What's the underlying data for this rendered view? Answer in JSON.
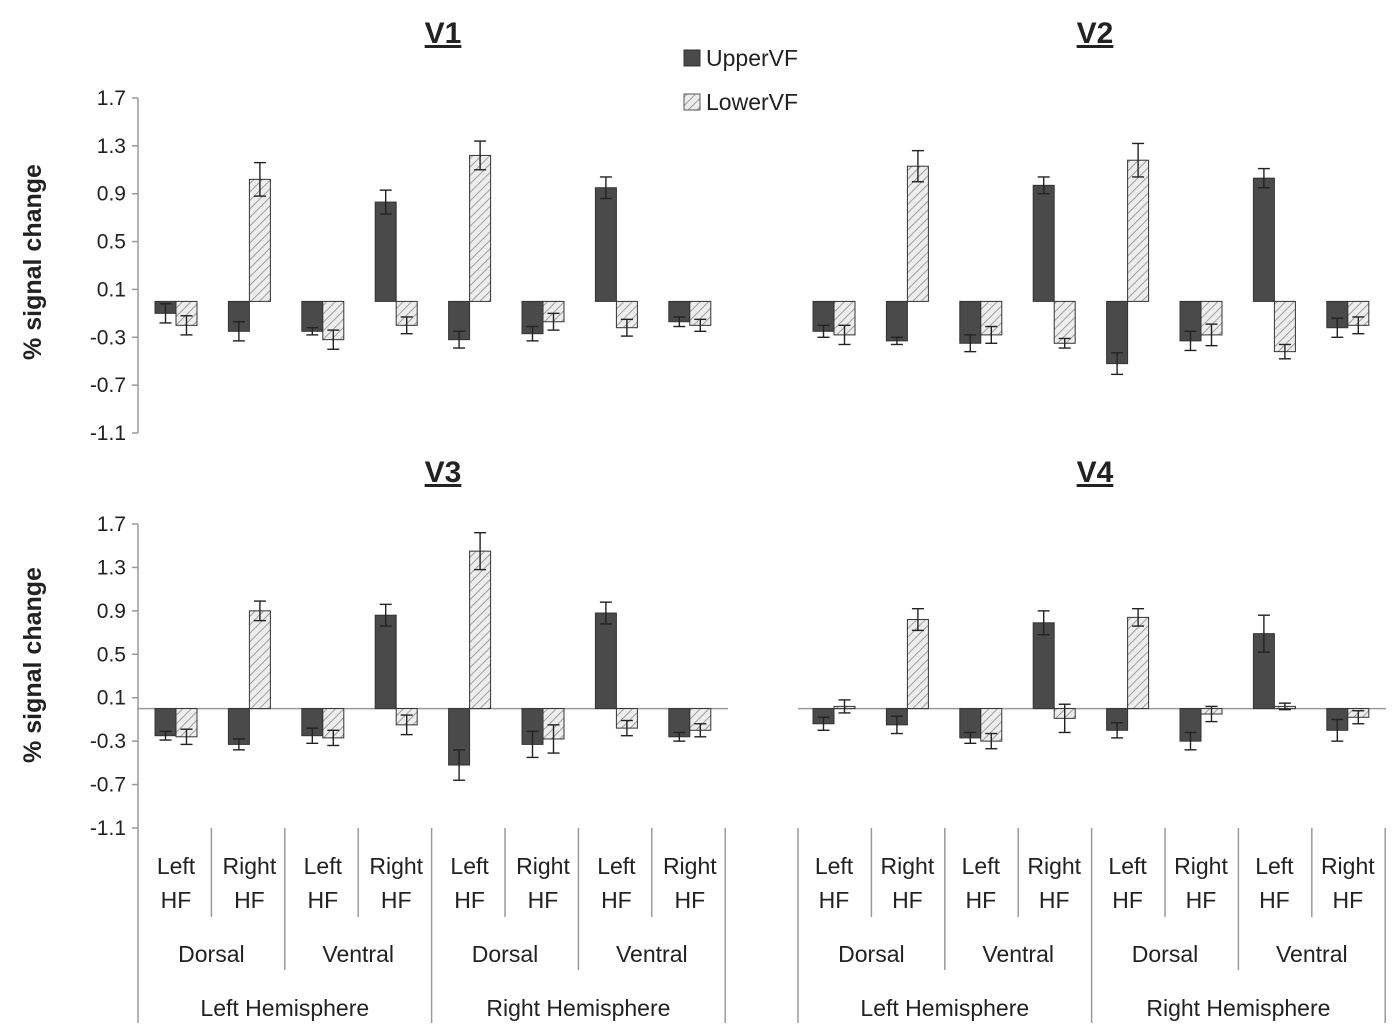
{
  "legend": {
    "items": [
      {
        "name": "UpperVF",
        "color": "#4a4a4a"
      },
      {
        "name": "LowerVF",
        "color": "#e8e8e8",
        "hatch": true
      }
    ]
  },
  "ylabel": "% signal change",
  "ytick_labels": [
    "1.7",
    "1.3",
    "0.9",
    "0.5",
    "0.1",
    "-0.3",
    "-0.7",
    "-1.1"
  ],
  "x_categories": {
    "level1": [
      "Left",
      "Right",
      "Left",
      "Right",
      "Left",
      "Right",
      "Left",
      "Right"
    ],
    "level1_line2": "HF",
    "level2": [
      "Dorsal",
      "Ventral",
      "Dorsal",
      "Ventral"
    ],
    "level3": [
      "Left Hemisphere",
      "Right Hemisphere"
    ]
  },
  "colors": {
    "upper": "#4a4a4a",
    "lower": "#e6e6e6",
    "axis": "#999999",
    "text": "#222222"
  },
  "chart_data": [
    {
      "type": "bar",
      "title": "V1",
      "ylim": [
        -1.1,
        1.7
      ],
      "series": [
        {
          "name": "UpperVF",
          "values": [
            -0.1,
            -0.25,
            -0.25,
            0.83,
            -0.32,
            -0.27,
            0.95,
            -0.17
          ],
          "errors": [
            0.08,
            0.08,
            0.03,
            0.1,
            0.07,
            0.06,
            0.09,
            0.04
          ]
        },
        {
          "name": "LowerVF",
          "values": [
            -0.2,
            1.02,
            -0.32,
            -0.2,
            1.22,
            -0.17,
            -0.22,
            -0.2
          ],
          "errors": [
            0.08,
            0.14,
            0.08,
            0.07,
            0.12,
            0.07,
            0.07,
            0.05
          ]
        }
      ]
    },
    {
      "type": "bar",
      "title": "V2",
      "ylim": [
        -1.1,
        1.7
      ],
      "series": [
        {
          "name": "UpperVF",
          "values": [
            -0.25,
            -0.33,
            -0.35,
            0.97,
            -0.52,
            -0.33,
            1.03,
            -0.22
          ],
          "errors": [
            0.05,
            0.03,
            0.07,
            0.07,
            0.09,
            0.08,
            0.08,
            0.08
          ]
        },
        {
          "name": "LowerVF",
          "values": [
            -0.28,
            1.13,
            -0.28,
            -0.35,
            1.18,
            -0.28,
            -0.42,
            -0.2
          ],
          "errors": [
            0.08,
            0.13,
            0.07,
            0.04,
            0.14,
            0.09,
            0.06,
            0.07
          ]
        }
      ]
    },
    {
      "type": "bar",
      "title": "V3",
      "ylim": [
        -1.1,
        1.7
      ],
      "series": [
        {
          "name": "UpperVF",
          "values": [
            -0.25,
            -0.33,
            -0.25,
            0.86,
            -0.52,
            -0.33,
            0.88,
            -0.26
          ],
          "errors": [
            0.04,
            0.05,
            0.07,
            0.1,
            0.14,
            0.12,
            0.1,
            0.04
          ]
        },
        {
          "name": "LowerVF",
          "values": [
            -0.26,
            0.9,
            -0.27,
            -0.15,
            1.45,
            -0.28,
            -0.18,
            -0.2
          ],
          "errors": [
            0.07,
            0.09,
            0.07,
            0.09,
            0.17,
            0.13,
            0.07,
            0.06
          ]
        }
      ]
    },
    {
      "type": "bar",
      "title": "V4",
      "ylim": [
        -1.1,
        1.7
      ],
      "series": [
        {
          "name": "UpperVF",
          "values": [
            -0.14,
            -0.15,
            -0.27,
            0.79,
            -0.2,
            -0.3,
            0.69,
            -0.2
          ],
          "errors": [
            0.06,
            0.08,
            0.05,
            0.11,
            0.07,
            0.08,
            0.17,
            0.1
          ]
        },
        {
          "name": "LowerVF",
          "values": [
            0.02,
            0.82,
            -0.3,
            -0.09,
            0.84,
            -0.05,
            0.02,
            -0.08
          ],
          "errors": [
            0.06,
            0.1,
            0.07,
            0.13,
            0.08,
            0.07,
            0.03,
            0.06
          ]
        }
      ]
    }
  ]
}
